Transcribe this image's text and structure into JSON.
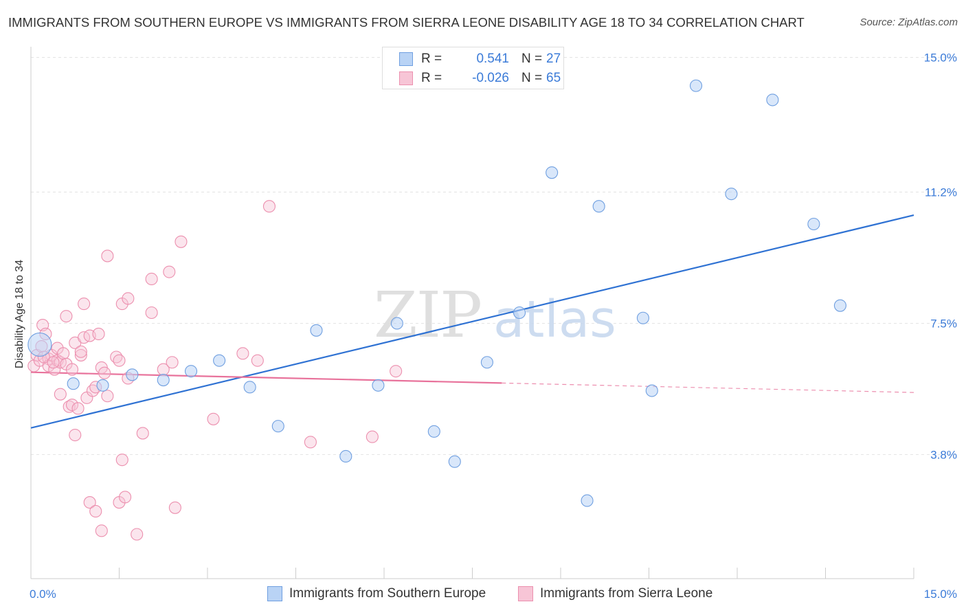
{
  "title": "IMMIGRANTS FROM SOUTHERN EUROPE VS IMMIGRANTS FROM SIERRA LEONE DISABILITY AGE 18 TO 34 CORRELATION CHART",
  "source": "Source: ZipAtlas.com",
  "watermark": {
    "zip": "ZIP",
    "atlas": "atlas"
  },
  "colors": {
    "blue_fill": "#b9d3f5",
    "blue_stroke": "#6f9fe0",
    "blue_line": "#2f72d3",
    "pink_fill": "#f7c5d6",
    "pink_stroke": "#ec8fae",
    "pink_line": "#e8729b",
    "tick_text": "#3b7bd8",
    "grid": "#e3e3e3"
  },
  "legend": {
    "rows": [
      {
        "r_label": "R =",
        "r_value": "0.541",
        "n_label": "N =",
        "n_value": "27",
        "series": "blue"
      },
      {
        "r_label": "R =",
        "r_value": "-0.026",
        "n_label": "N =",
        "n_value": "65",
        "series": "pink"
      }
    ]
  },
  "bottom_legend": {
    "blue": "Immigrants from Southern Europe",
    "pink": "Immigrants from Sierra Leone"
  },
  "chart_data": {
    "type": "scatter",
    "title": "IMMIGRANTS FROM SOUTHERN EUROPE VS IMMIGRANTS FROM SIERRA LEONE DISABILITY AGE 18 TO 34 CORRELATION CHART",
    "xlabel": "",
    "ylabel": "Disability Age 18 to 34",
    "xlim": [
      0,
      15
    ],
    "ylim": [
      0.3,
      15.3
    ],
    "x_tick_labels": [
      {
        "value": 0,
        "label": "0.0%"
      },
      {
        "value": 15,
        "label": "15.0%"
      }
    ],
    "y_ticks": [
      {
        "value": 3.8,
        "label": "3.8%"
      },
      {
        "value": 7.5,
        "label": "7.5%"
      },
      {
        "value": 11.2,
        "label": "11.2%"
      },
      {
        "value": 15.0,
        "label": "15.0%"
      }
    ],
    "grid": true,
    "legend_position": "top-center",
    "series": [
      {
        "name": "Immigrants from Southern Europe",
        "color": "blue",
        "r": 0.541,
        "n": 27,
        "trend": {
          "x": [
            0,
            15
          ],
          "y": [
            4.55,
            10.55
          ],
          "solid_until": 15
        },
        "points": [
          {
            "x": 0.15,
            "y": 6.9,
            "big": true
          },
          {
            "x": 0.72,
            "y": 5.8
          },
          {
            "x": 1.22,
            "y": 5.75
          },
          {
            "x": 1.72,
            "y": 6.05
          },
          {
            "x": 2.25,
            "y": 5.9
          },
          {
            "x": 2.72,
            "y": 6.15
          },
          {
            "x": 3.2,
            "y": 6.45
          },
          {
            "x": 3.72,
            "y": 5.7
          },
          {
            "x": 4.2,
            "y": 4.6
          },
          {
            "x": 4.85,
            "y": 7.3
          },
          {
            "x": 5.35,
            "y": 3.75
          },
          {
            "x": 5.9,
            "y": 5.75
          },
          {
            "x": 6.22,
            "y": 7.5
          },
          {
            "x": 6.85,
            "y": 4.45
          },
          {
            "x": 7.2,
            "y": 3.6
          },
          {
            "x": 7.75,
            "y": 6.4
          },
          {
            "x": 8.3,
            "y": 7.8
          },
          {
            "x": 8.85,
            "y": 11.75
          },
          {
            "x": 9.45,
            "y": 2.5
          },
          {
            "x": 9.65,
            "y": 10.8
          },
          {
            "x": 10.4,
            "y": 7.65
          },
          {
            "x": 10.55,
            "y": 5.6
          },
          {
            "x": 11.3,
            "y": 14.2
          },
          {
            "x": 11.9,
            "y": 11.15
          },
          {
            "x": 12.6,
            "y": 13.8
          },
          {
            "x": 13.3,
            "y": 10.3
          },
          {
            "x": 13.75,
            "y": 8.0
          }
        ]
      },
      {
        "name": "Immigrants from Sierra Leone",
        "color": "pink",
        "r": -0.026,
        "n": 65,
        "trend": {
          "x": [
            0,
            15
          ],
          "y": [
            6.12,
            5.55
          ],
          "solid_until": 8.0
        },
        "points": [
          {
            "x": 0.05,
            "y": 6.3
          },
          {
            "x": 0.1,
            "y": 6.6
          },
          {
            "x": 0.15,
            "y": 6.45
          },
          {
            "x": 0.18,
            "y": 6.85
          },
          {
            "x": 0.2,
            "y": 7.45
          },
          {
            "x": 0.25,
            "y": 7.2
          },
          {
            "x": 0.3,
            "y": 6.5
          },
          {
            "x": 0.3,
            "y": 6.3
          },
          {
            "x": 0.35,
            "y": 6.6
          },
          {
            "x": 0.4,
            "y": 6.2
          },
          {
            "x": 0.45,
            "y": 6.8
          },
          {
            "x": 0.45,
            "y": 6.45
          },
          {
            "x": 0.5,
            "y": 6.4
          },
          {
            "x": 0.5,
            "y": 5.5
          },
          {
            "x": 0.55,
            "y": 6.65
          },
          {
            "x": 0.6,
            "y": 6.35
          },
          {
            "x": 0.6,
            "y": 7.7
          },
          {
            "x": 0.65,
            "y": 5.15
          },
          {
            "x": 0.7,
            "y": 6.2
          },
          {
            "x": 0.7,
            "y": 5.2
          },
          {
            "x": 0.75,
            "y": 6.95
          },
          {
            "x": 0.75,
            "y": 4.35
          },
          {
            "x": 0.8,
            "y": 5.1
          },
          {
            "x": 0.85,
            "y": 6.6
          },
          {
            "x": 0.85,
            "y": 6.7
          },
          {
            "x": 0.9,
            "y": 7.1
          },
          {
            "x": 0.9,
            "y": 8.05
          },
          {
            "x": 0.95,
            "y": 5.4
          },
          {
            "x": 1.0,
            "y": 7.15
          },
          {
            "x": 1.0,
            "y": 2.45
          },
          {
            "x": 1.05,
            "y": 5.6
          },
          {
            "x": 1.1,
            "y": 5.7
          },
          {
            "x": 1.1,
            "y": 2.2
          },
          {
            "x": 1.15,
            "y": 7.2
          },
          {
            "x": 1.2,
            "y": 6.25
          },
          {
            "x": 1.2,
            "y": 1.65
          },
          {
            "x": 1.25,
            "y": 6.1
          },
          {
            "x": 1.3,
            "y": 5.45
          },
          {
            "x": 1.3,
            "y": 9.4
          },
          {
            "x": 1.45,
            "y": 6.55
          },
          {
            "x": 1.5,
            "y": 6.45
          },
          {
            "x": 1.5,
            "y": 2.45
          },
          {
            "x": 1.55,
            "y": 8.05
          },
          {
            "x": 1.55,
            "y": 3.65
          },
          {
            "x": 1.6,
            "y": 2.6
          },
          {
            "x": 1.65,
            "y": 5.95
          },
          {
            "x": 1.65,
            "y": 8.2
          },
          {
            "x": 1.8,
            "y": 1.55
          },
          {
            "x": 1.9,
            "y": 4.4
          },
          {
            "x": 2.05,
            "y": 8.75
          },
          {
            "x": 2.05,
            "y": 7.8
          },
          {
            "x": 2.25,
            "y": 6.2
          },
          {
            "x": 2.35,
            "y": 8.95
          },
          {
            "x": 2.4,
            "y": 6.4
          },
          {
            "x": 2.45,
            "y": 2.3
          },
          {
            "x": 2.55,
            "y": 9.8
          },
          {
            "x": 3.1,
            "y": 4.8
          },
          {
            "x": 3.6,
            "y": 6.65
          },
          {
            "x": 3.85,
            "y": 6.45
          },
          {
            "x": 4.05,
            "y": 10.8
          },
          {
            "x": 4.75,
            "y": 4.15
          },
          {
            "x": 5.8,
            "y": 4.3
          },
          {
            "x": 6.2,
            "y": 6.15
          },
          {
            "x": 0.22,
            "y": 6.55
          },
          {
            "x": 0.38,
            "y": 6.4
          }
        ]
      }
    ]
  }
}
